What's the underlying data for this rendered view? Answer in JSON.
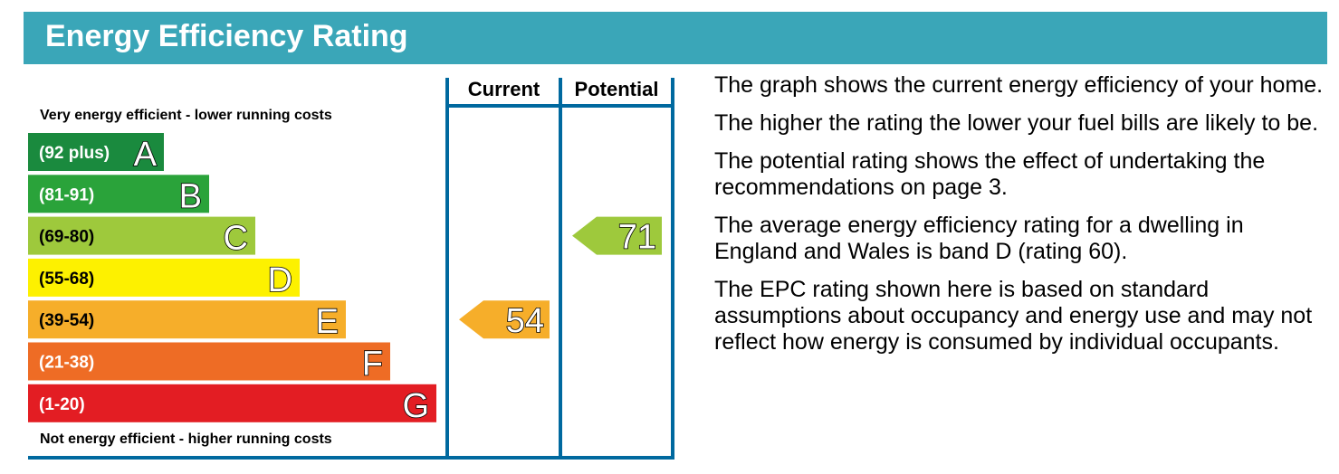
{
  "header": {
    "title": "Energy Efficiency Rating"
  },
  "chart_data": {
    "type": "bar",
    "title": "Energy Efficiency Rating",
    "top_label": "Very energy efficient - lower running costs",
    "bottom_label": "Not energy efficient - higher running costs",
    "columns": [
      "Current",
      "Potential"
    ],
    "bands": [
      {
        "range": "(92 plus)",
        "letter": "A",
        "color": "#1a8a3e"
      },
      {
        "range": "(81-91)",
        "letter": "B",
        "color": "#2aa33a"
      },
      {
        "range": "(69-80)",
        "letter": "C",
        "color": "#9ec93c"
      },
      {
        "range": "(55-68)",
        "letter": "D",
        "color": "#fdf100"
      },
      {
        "range": "(39-54)",
        "letter": "E",
        "color": "#f6ae2a"
      },
      {
        "range": "(21-38)",
        "letter": "F",
        "color": "#ee6c25"
      },
      {
        "range": "(1-20)",
        "letter": "G",
        "color": "#e31d23"
      }
    ],
    "current": {
      "value": 54,
      "band": "E",
      "color": "#f6ae2a"
    },
    "potential": {
      "value": 71,
      "band": "C",
      "color": "#9ec93c"
    },
    "grid_color": "#00699f"
  },
  "description": {
    "paragraphs": [
      "The graph shows the current energy efficiency of your home.",
      "The higher the rating the lower your fuel bills are likely to be.",
      "The potential rating shows the effect of undertaking the recommendations on page 3.",
      "The average energy efficiency rating for a dwelling in England and Wales is band D (rating 60).",
      "The EPC rating shown here is based on standard assumptions about occupancy and energy use and may not reflect how energy is consumed by individual occupants."
    ]
  }
}
